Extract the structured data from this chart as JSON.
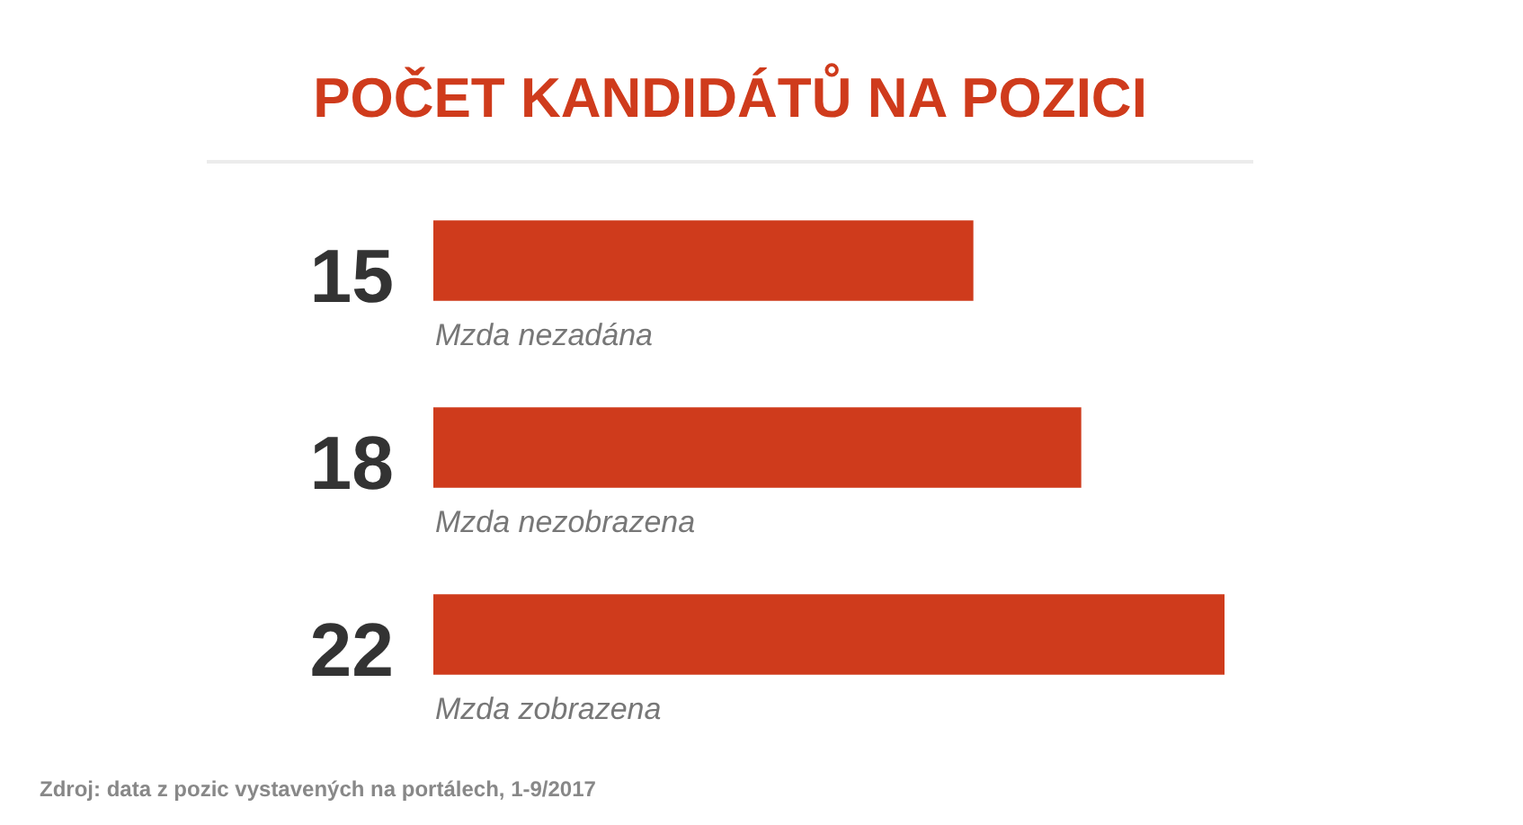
{
  "chart_data": {
    "type": "bar",
    "orientation": "horizontal",
    "title": "POČET KANDIDÁTŮ NA POZICI",
    "categories": [
      "Mzda nezadána",
      "Mzda nezobrazena",
      "Mzda zobrazena"
    ],
    "values": [
      15,
      18,
      22
    ],
    "color": "#cf3b1c",
    "data_labels": true,
    "annotations": [
      "Zdroj: data z pozic vystavených na portálech, 1-9/2017"
    ]
  }
}
